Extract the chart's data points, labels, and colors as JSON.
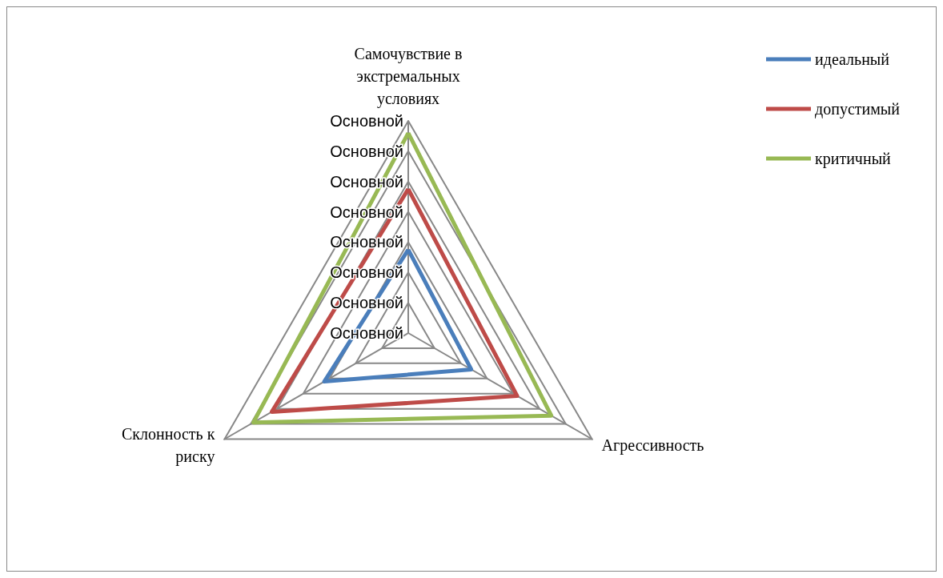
{
  "chart_data": {
    "type": "radar",
    "categories": [
      "Самочувствие в экстремальных условиях",
      "Агрессивность",
      "Склонность к риску"
    ],
    "ylim": [
      0,
      7
    ],
    "yticks": [
      {
        "value": 0,
        "label": "Основной"
      },
      {
        "value": 1,
        "label": "Основной"
      },
      {
        "value": 2,
        "label": "Основной"
      },
      {
        "value": 3,
        "label": "Основной"
      },
      {
        "value": 4,
        "label": "Основной"
      },
      {
        "value": 5,
        "label": "Основной"
      },
      {
        "value": 6,
        "label": "Основной"
      },
      {
        "value": 7,
        "label": "Основной"
      }
    ],
    "series": [
      {
        "name": "идеальный",
        "color": "#4a7ebb",
        "values": [
          2.75,
          2.4,
          3.2
        ]
      },
      {
        "name": "допустимый",
        "color": "#be4b48",
        "values": [
          4.75,
          4.15,
          5.2
        ]
      },
      {
        "name": "критичный",
        "color": "#98b954",
        "values": [
          6.6,
          5.45,
          5.9
        ]
      }
    ],
    "legend": "top right",
    "marker": "none",
    "line_style": "solid",
    "grid": true
  }
}
